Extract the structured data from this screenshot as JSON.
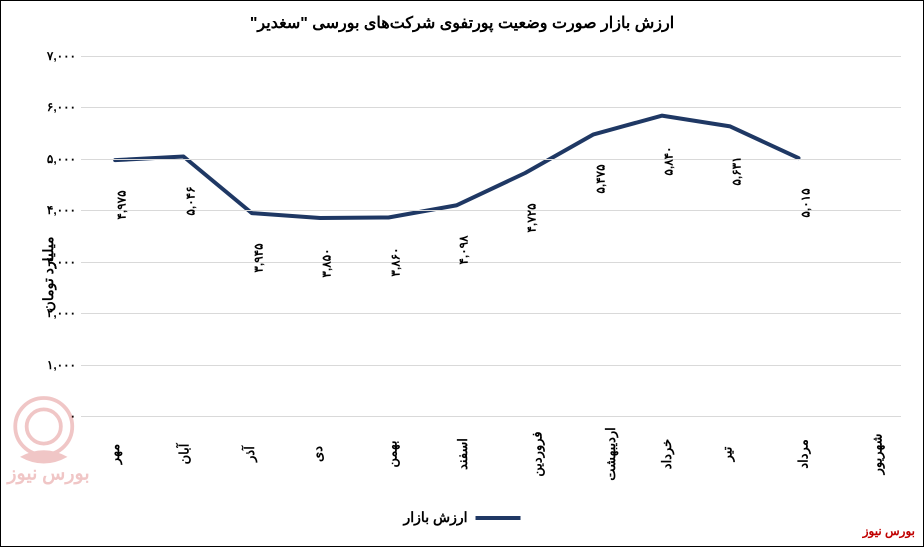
{
  "chart": {
    "type": "line",
    "title": "ارزش بازار صورت وضعیت پورتفوی شرکت‌های بورسی \"سغدیر\"",
    "title_fontsize": 16,
    "y_axis_title": "میلیارد تومان",
    "ylim": [
      0,
      7000
    ],
    "ytick_step": 1000,
    "yticks": [
      "۰",
      "۱,۰۰۰",
      "۲,۰۰۰",
      "۳,۰۰۰",
      "۴,۰۰۰",
      "۵,۰۰۰",
      "۶,۰۰۰",
      "۷,۰۰۰"
    ],
    "categories": [
      "مهر",
      "آبان",
      "آذر",
      "دی",
      "بهمن",
      "اسفند",
      "فروردین",
      "اردیبهشت",
      "خرداد",
      "تیر",
      "مرداد",
      "شهریور"
    ],
    "values": [
      4975,
      5046,
      3945,
      3850,
      3860,
      4098,
      4725,
      5475,
      5840,
      5631,
      5015,
      null
    ],
    "data_labels": [
      "۴,۹۷۵",
      "۵,۰۴۶",
      "۳,۹۴۵",
      "۳,۸۵۰",
      "۳,۸۶۰",
      "۴,۰۹۸",
      "۴,۷۲۵",
      "۵,۴۷۵",
      "۵,۸۴۰",
      "۵,۶۳۱",
      "۵,۰۱۵",
      ""
    ],
    "series_name": "ارزش بازار",
    "line_color": "#1f3864",
    "line_width": 4,
    "background_color": "#ffffff",
    "grid_color": "#d9d9d9",
    "label_fontsize": 12
  },
  "watermark": {
    "text": "بورس نیوز",
    "color": "#c00000"
  }
}
